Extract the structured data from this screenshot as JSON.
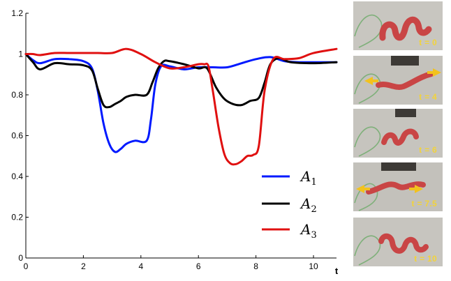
{
  "chart_data": {
    "type": "line",
    "xlabel": "t",
    "ylabel": "",
    "xlim": [
      0,
      10.8
    ],
    "ylim": [
      0,
      1.2
    ],
    "x_ticks": [
      "0",
      "2",
      "4",
      "6",
      "8",
      "10"
    ],
    "y_ticks": [
      "0",
      "0.2",
      "0.4",
      "0.6",
      "0.8",
      "1",
      "1.2"
    ],
    "legend_position": "bottom-right",
    "series": [
      {
        "name": "A1",
        "color": "#0019ff",
        "x": [
          0,
          0.25,
          0.5,
          1.0,
          1.5,
          2.0,
          2.3,
          2.5,
          2.7,
          2.9,
          3.1,
          3.3,
          3.5,
          3.8,
          4.2,
          4.35,
          4.5,
          4.7,
          5.0,
          5.5,
          6.0,
          6.5,
          7.0,
          7.5,
          8.0,
          8.5,
          9.0,
          9.5,
          10.0,
          10.8
        ],
        "y": [
          1.0,
          0.97,
          0.955,
          0.975,
          0.975,
          0.965,
          0.93,
          0.82,
          0.66,
          0.56,
          0.52,
          0.535,
          0.56,
          0.575,
          0.575,
          0.68,
          0.85,
          0.94,
          0.94,
          0.925,
          0.935,
          0.935,
          0.935,
          0.955,
          0.975,
          0.985,
          0.965,
          0.96,
          0.96,
          0.96
        ]
      },
      {
        "name": "A2",
        "color": "#000000",
        "x": [
          0,
          0.25,
          0.5,
          1.0,
          1.5,
          2.0,
          2.3,
          2.5,
          2.7,
          2.9,
          3.1,
          3.3,
          3.5,
          3.8,
          4.2,
          4.4,
          4.6,
          4.8,
          5.0,
          5.5,
          6.0,
          6.3,
          6.6,
          6.9,
          7.2,
          7.5,
          7.8,
          8.1,
          8.3,
          8.5,
          8.8,
          9.2,
          10.0,
          10.8
        ],
        "y": [
          1.0,
          0.96,
          0.925,
          0.955,
          0.95,
          0.945,
          0.92,
          0.83,
          0.75,
          0.74,
          0.755,
          0.77,
          0.79,
          0.8,
          0.8,
          0.86,
          0.93,
          0.965,
          0.965,
          0.95,
          0.93,
          0.93,
          0.84,
          0.78,
          0.755,
          0.75,
          0.77,
          0.785,
          0.86,
          0.95,
          0.98,
          0.96,
          0.955,
          0.96
        ]
      },
      {
        "name": "A3",
        "color": "#e01010",
        "x": [
          0,
          0.25,
          0.5,
          1.0,
          1.5,
          2.0,
          2.5,
          3.0,
          3.5,
          4.0,
          4.5,
          5.0,
          5.5,
          6.0,
          6.2,
          6.35,
          6.5,
          6.7,
          6.9,
          7.1,
          7.3,
          7.5,
          7.7,
          7.9,
          8.1,
          8.3,
          8.6,
          9.0,
          9.5,
          10.0,
          10.8
        ],
        "y": [
          1.0,
          1.0,
          0.995,
          1.005,
          1.005,
          1.005,
          1.005,
          1.005,
          1.025,
          1.0,
          0.96,
          0.93,
          0.935,
          0.95,
          0.95,
          0.94,
          0.82,
          0.64,
          0.51,
          0.465,
          0.46,
          0.475,
          0.5,
          0.505,
          0.55,
          0.82,
          0.975,
          0.975,
          0.98,
          1.005,
          1.025
        ]
      }
    ]
  },
  "legend": {
    "items": [
      {
        "base": "A",
        "sub": "1",
        "color": "#0019ff"
      },
      {
        "base": "A",
        "sub": "2",
        "color": "#000000"
      },
      {
        "base": "A",
        "sub": "3",
        "color": "#e01010"
      }
    ]
  },
  "photos": [
    {
      "label": "t = 0"
    },
    {
      "label": "t = 4"
    },
    {
      "label": "t = 6"
    },
    {
      "label": "t = 7.5"
    },
    {
      "label": "t = 10"
    }
  ]
}
